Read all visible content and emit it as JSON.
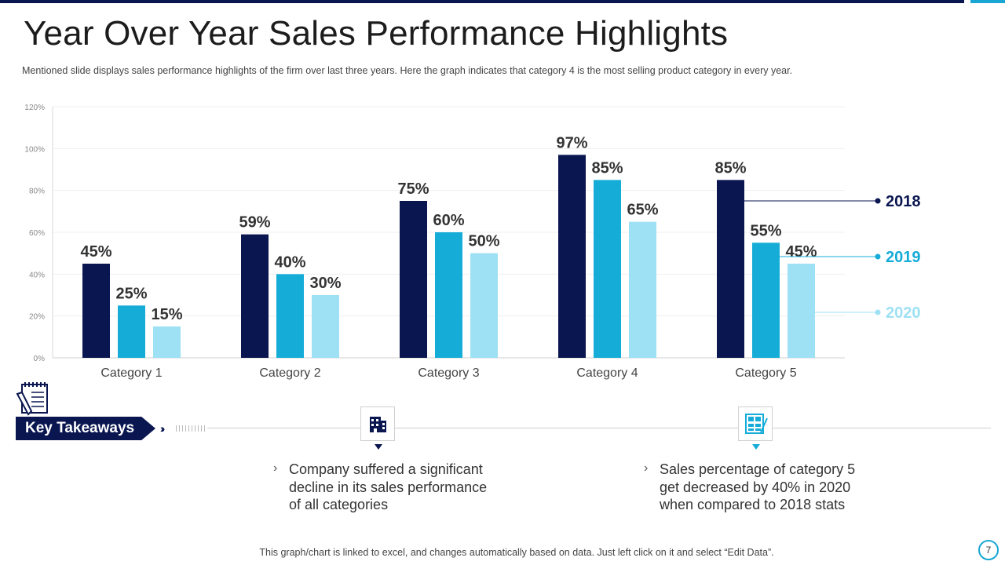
{
  "title": "Year Over Year Sales Performance Highlights",
  "subtitle": "Mentioned slide displays sales performance  highlights of the firm over  last three years. Here the graph  indicates that category 4 is the most selling product category in every  year.",
  "colors": {
    "s2018": "#0a1650",
    "s2019": "#16acd8",
    "s2020": "#9ee1f4",
    "accent": "#0a1650"
  },
  "chart_data": {
    "type": "bar",
    "categories": [
      "Category 1",
      "Category 2",
      "Category 3",
      "Category 4",
      "Category 5"
    ],
    "series": [
      {
        "name": "2018",
        "values": [
          45,
          59,
          75,
          97,
          85
        ]
      },
      {
        "name": "2019",
        "values": [
          25,
          40,
          60,
          85,
          55
        ]
      },
      {
        "name": "2020",
        "values": [
          15,
          30,
          50,
          65,
          45
        ]
      }
    ],
    "y_ticks": [
      "0%",
      "20%",
      "40%",
      "60%",
      "80%",
      "100%",
      "120%"
    ],
    "ylim": [
      0,
      120
    ],
    "value_suffix": "%",
    "grid": true,
    "legend_position": "right"
  },
  "key_takeaways": {
    "label": "Key Takeaways",
    "items": [
      {
        "text": "Company suffered a significant decline in its sales performance of all categories",
        "icon": "building-icon"
      },
      {
        "text": "Sales percentage of category 5 get decreased by 40% in 2020 when compared to 2018 stats",
        "icon": "calculator-icon"
      }
    ]
  },
  "footer": "This graph/chart is linked to excel, and changes automatically based on data. Just left click on it and select “Edit Data”.",
  "page_number": "7"
}
